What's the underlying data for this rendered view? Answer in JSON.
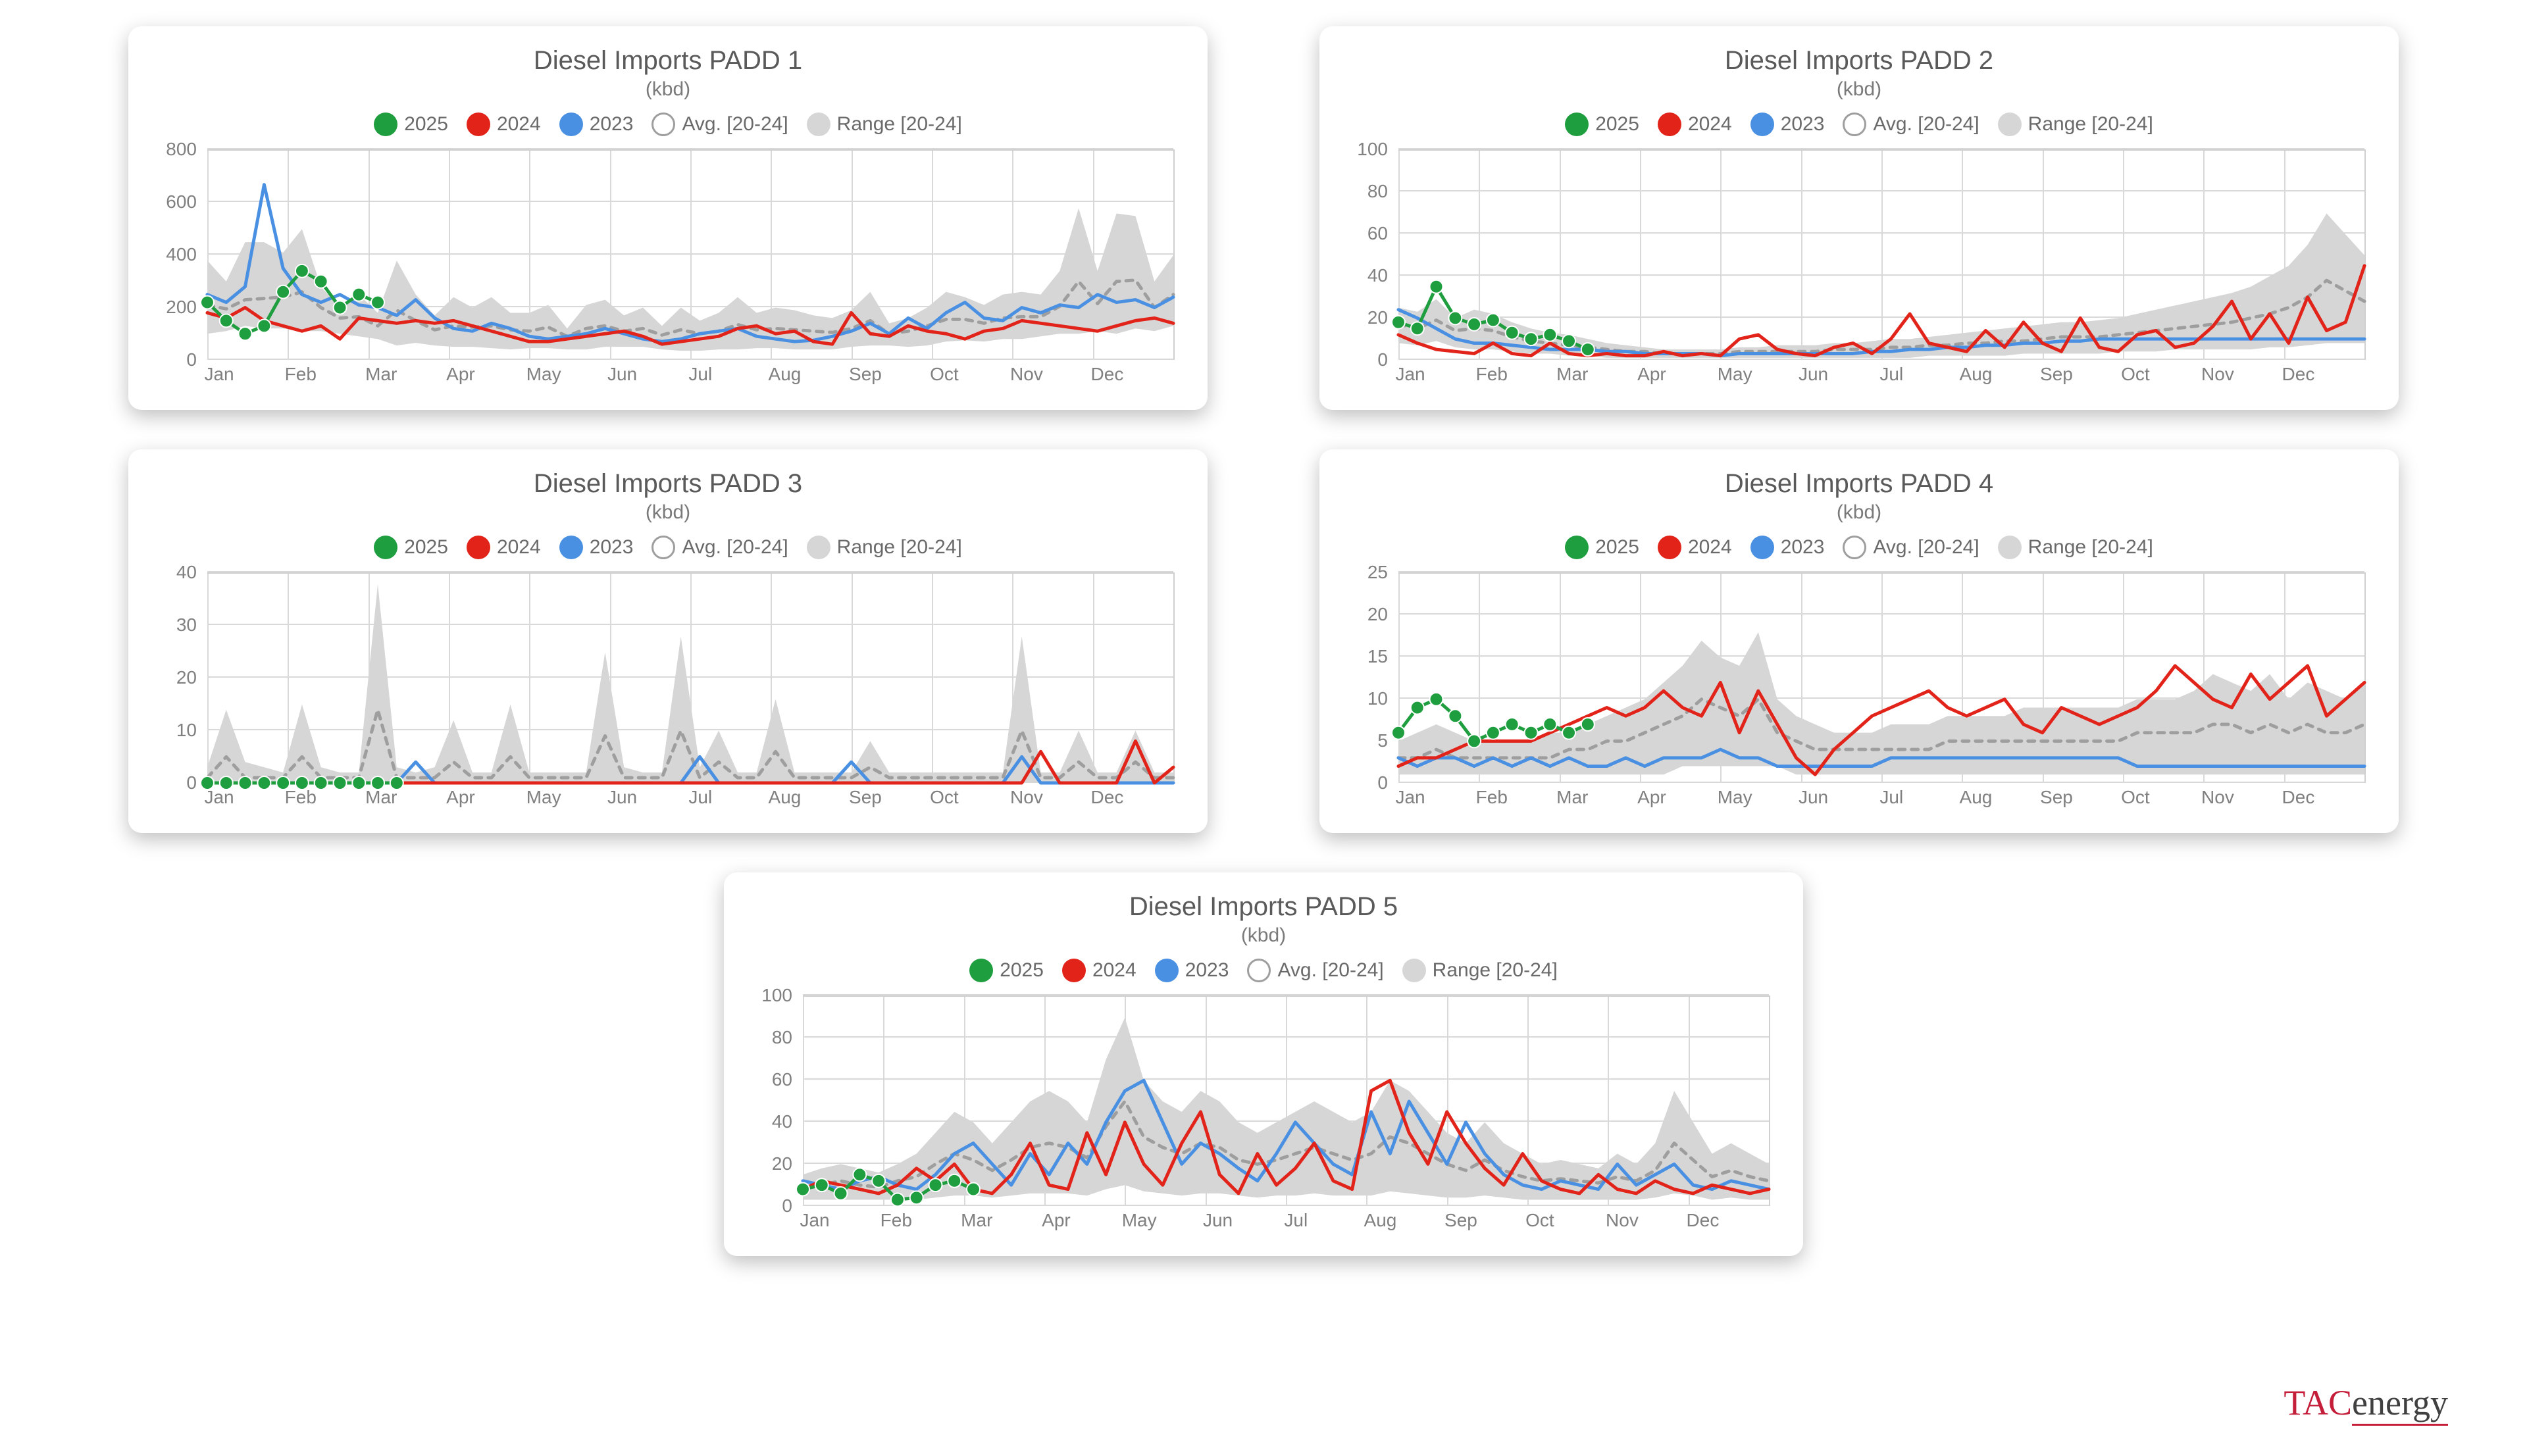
{
  "brand": {
    "part1": "TAC",
    "part2": "energy"
  },
  "legend": {
    "y2025": "2025",
    "y2024": "2024",
    "y2023": "2023",
    "avg": "Avg. [20-24]",
    "range": "Range [20-24]"
  },
  "colors": {
    "y2025": "#1e9e3e",
    "y2024": "#e2231a",
    "y2023": "#4a90e2",
    "avg": "#9e9e9e",
    "range": "#d6d6d6",
    "grid": "#d9d9d9",
    "text": "#6a6a6a",
    "card_bg": "#ffffff"
  },
  "style": {
    "line_width": 5,
    "marker_radius": 10,
    "avg_dash": "10,10",
    "title_fontsize": 40,
    "subtitle_fontsize": 30,
    "axis_fontsize": 28
  },
  "months": [
    "Jan",
    "Feb",
    "Mar",
    "Apr",
    "May",
    "Jun",
    "Jul",
    "Aug",
    "Sep",
    "Oct",
    "Nov",
    "Dec"
  ],
  "charts": [
    {
      "id": "padd1",
      "title": "Diesel Imports PADD 1",
      "subtitle": "(kbd)",
      "ylim": [
        0,
        800
      ],
      "yticks": [
        0,
        200,
        400,
        600,
        800
      ],
      "range_hi": [
        380,
        300,
        450,
        450,
        410,
        500,
        280,
        200,
        250,
        180,
        380,
        250,
        170,
        240,
        200,
        240,
        180,
        180,
        210,
        120,
        210,
        230,
        170,
        200,
        130,
        200,
        150,
        180,
        240,
        180,
        200,
        190,
        170,
        160,
        190,
        260,
        140,
        160,
        200,
        260,
        240,
        210,
        250,
        260,
        250,
        340,
        580,
        340,
        560,
        550,
        300,
        400
      ],
      "range_lo": [
        100,
        110,
        130,
        120,
        120,
        110,
        110,
        100,
        90,
        80,
        55,
        65,
        55,
        50,
        50,
        45,
        40,
        45,
        45,
        40,
        40,
        50,
        50,
        50,
        40,
        35,
        35,
        40,
        40,
        45,
        45,
        40,
        40,
        40,
        50,
        55,
        55,
        50,
        55,
        70,
        75,
        70,
        80,
        80,
        90,
        100,
        100,
        110,
        100,
        120,
        110,
        130
      ],
      "avg": [
        210,
        195,
        230,
        235,
        240,
        260,
        200,
        160,
        165,
        130,
        190,
        150,
        115,
        130,
        125,
        130,
        115,
        110,
        125,
        90,
        120,
        130,
        110,
        120,
        95,
        115,
        100,
        110,
        135,
        115,
        120,
        115,
        110,
        105,
        120,
        150,
        100,
        110,
        130,
        155,
        155,
        140,
        160,
        165,
        165,
        205,
        300,
        215,
        300,
        305,
        200,
        250
      ],
      "y2023": [
        250,
        220,
        280,
        670,
        350,
        250,
        220,
        250,
        210,
        200,
        170,
        230,
        160,
        120,
        110,
        140,
        120,
        90,
        80,
        90,
        100,
        120,
        100,
        80,
        70,
        80,
        100,
        110,
        120,
        90,
        80,
        70,
        75,
        90,
        110,
        140,
        100,
        160,
        120,
        180,
        220,
        160,
        150,
        200,
        180,
        210,
        200,
        250,
        220,
        230,
        200,
        240
      ],
      "y2024": [
        180,
        160,
        200,
        150,
        130,
        110,
        130,
        80,
        160,
        150,
        140,
        150,
        140,
        150,
        130,
        110,
        90,
        70,
        70,
        80,
        90,
        100,
        110,
        90,
        60,
        70,
        80,
        90,
        120,
        130,
        100,
        110,
        70,
        60,
        180,
        100,
        90,
        130,
        110,
        100,
        80,
        110,
        120,
        150,
        140,
        130,
        120,
        110,
        130,
        150,
        160,
        140
      ],
      "y2025": [
        220,
        150,
        100,
        130,
        260,
        340,
        300,
        200,
        250,
        220
      ]
    },
    {
      "id": "padd2",
      "title": "Diesel Imports PADD 2",
      "subtitle": "(kbd)",
      "ylim": [
        0,
        100
      ],
      "yticks": [
        0,
        20,
        40,
        60,
        80,
        100
      ],
      "range_hi": [
        25,
        23,
        29,
        20,
        24,
        22,
        18,
        15,
        13,
        12,
        10,
        8,
        7,
        6,
        5,
        5,
        5,
        5,
        6,
        6,
        7,
        7,
        7,
        8,
        8,
        9,
        10,
        10,
        11,
        12,
        13,
        14,
        15,
        16,
        17,
        18,
        18,
        19,
        20,
        22,
        24,
        26,
        28,
        30,
        32,
        35,
        40,
        45,
        55,
        70,
        60,
        50
      ],
      "range_lo": [
        8,
        7,
        9,
        6,
        5,
        5,
        4,
        3,
        3,
        2,
        2,
        1,
        1,
        1,
        1,
        1,
        1,
        1,
        1,
        1,
        1,
        1,
        1,
        1,
        1,
        1,
        1,
        1,
        2,
        2,
        2,
        2,
        2,
        3,
        3,
        3,
        3,
        3,
        4,
        4,
        4,
        5,
        5,
        5,
        5,
        5,
        6,
        6,
        7,
        8,
        8,
        8
      ],
      "avg": [
        17,
        15,
        19,
        14,
        15,
        14,
        11,
        9,
        8,
        7,
        6,
        5,
        4,
        4,
        3,
        3,
        3,
        3,
        4,
        4,
        4,
        4,
        4,
        5,
        5,
        5,
        6,
        6,
        7,
        7,
        8,
        8,
        9,
        9,
        10,
        11,
        11,
        11,
        12,
        13,
        14,
        15,
        16,
        17,
        18,
        20,
        22,
        25,
        30,
        38,
        33,
        28
      ],
      "y2023": [
        24,
        20,
        15,
        10,
        8,
        8,
        7,
        6,
        5,
        5,
        5,
        4,
        4,
        3,
        3,
        3,
        3,
        2,
        3,
        3,
        3,
        3,
        3,
        3,
        3,
        4,
        4,
        5,
        5,
        6,
        6,
        7,
        7,
        8,
        8,
        9,
        9,
        10,
        10,
        10,
        10,
        10,
        10,
        10,
        10,
        10,
        10,
        10,
        10,
        10,
        10,
        10
      ],
      "y2024": [
        12,
        8,
        5,
        4,
        3,
        8,
        3,
        2,
        8,
        3,
        2,
        3,
        2,
        2,
        4,
        2,
        3,
        2,
        10,
        12,
        5,
        3,
        2,
        6,
        8,
        3,
        10,
        22,
        8,
        6,
        4,
        14,
        6,
        18,
        8,
        4,
        20,
        6,
        4,
        12,
        14,
        6,
        8,
        16,
        28,
        10,
        22,
        8,
        30,
        14,
        18,
        45
      ],
      "y2025": [
        18,
        15,
        35,
        20,
        17,
        19,
        13,
        10,
        12,
        9,
        5
      ]
    },
    {
      "id": "padd3",
      "title": "Diesel Imports PADD 3",
      "subtitle": "(kbd)",
      "ylim": [
        0,
        40
      ],
      "yticks": [
        0,
        10,
        20,
        30,
        40
      ],
      "range_hi": [
        3,
        14,
        4,
        3,
        2,
        15,
        3,
        2,
        2,
        38,
        3,
        2,
        3,
        12,
        2,
        2,
        15,
        2,
        2,
        2,
        2,
        25,
        3,
        2,
        2,
        28,
        3,
        10,
        2,
        2,
        16,
        2,
        2,
        2,
        2,
        8,
        2,
        2,
        2,
        2,
        2,
        2,
        2,
        28,
        2,
        2,
        10,
        2,
        2,
        10,
        2,
        2
      ],
      "range_lo": [
        0,
        0,
        0,
        0,
        0,
        0,
        0,
        0,
        0,
        0,
        0,
        0,
        0,
        0,
        0,
        0,
        0,
        0,
        0,
        0,
        0,
        0,
        0,
        0,
        0,
        0,
        0,
        0,
        0,
        0,
        0,
        0,
        0,
        0,
        0,
        0,
        0,
        0,
        0,
        0,
        0,
        0,
        0,
        0,
        0,
        0,
        0,
        0,
        0,
        0,
        0,
        0
      ],
      "avg": [
        1,
        5,
        1,
        1,
        1,
        5,
        1,
        1,
        1,
        14,
        1,
        1,
        1,
        4,
        1,
        1,
        5,
        1,
        1,
        1,
        1,
        9,
        1,
        1,
        1,
        10,
        1,
        4,
        1,
        1,
        6,
        1,
        1,
        1,
        1,
        3,
        1,
        1,
        1,
        1,
        1,
        1,
        1,
        10,
        1,
        1,
        4,
        1,
        1,
        4,
        1,
        1
      ],
      "y2023": [
        0,
        0,
        0,
        0,
        0,
        0,
        0,
        0,
        0,
        0,
        0,
        4,
        0,
        0,
        0,
        0,
        0,
        0,
        0,
        0,
        0,
        0,
        0,
        0,
        0,
        0,
        5,
        0,
        0,
        0,
        0,
        0,
        0,
        0,
        4,
        0,
        0,
        0,
        0,
        0,
        0,
        0,
        0,
        5,
        0,
        0,
        0,
        0,
        0,
        0,
        0,
        0
      ],
      "y2024": [
        0,
        0,
        0,
        0,
        0,
        0,
        0,
        0,
        0,
        0,
        0,
        0,
        0,
        0,
        0,
        0,
        0,
        0,
        0,
        0,
        0,
        0,
        0,
        0,
        0,
        0,
        0,
        0,
        0,
        0,
        0,
        0,
        0,
        0,
        0,
        0,
        0,
        0,
        0,
        0,
        0,
        0,
        0,
        0,
        6,
        0,
        0,
        0,
        0,
        8,
        0,
        3
      ],
      "y2025": [
        0,
        0,
        0,
        0,
        0,
        0,
        0,
        0,
        0,
        0,
        0
      ]
    },
    {
      "id": "padd4",
      "title": "Diesel Imports PADD 4",
      "subtitle": "(kbd)",
      "ylim": [
        0,
        25
      ],
      "yticks": [
        0,
        5,
        10,
        15,
        20,
        25
      ],
      "range_hi": [
        5,
        6,
        7,
        6,
        5,
        5,
        5,
        5,
        6,
        6,
        7,
        8,
        9,
        10,
        12,
        14,
        17,
        15,
        14,
        18,
        10,
        8,
        7,
        6,
        6,
        6,
        7,
        7,
        7,
        8,
        8,
        8,
        8,
        9,
        9,
        9,
        9,
        9,
        9,
        10,
        10,
        10,
        11,
        13,
        12,
        11,
        13,
        10,
        12,
        11,
        10,
        12
      ],
      "range_lo": [
        1,
        1,
        1,
        1,
        1,
        1,
        1,
        1,
        1,
        1,
        1,
        1,
        1,
        1,
        1,
        2,
        2,
        2,
        2,
        2,
        2,
        1,
        1,
        1,
        1,
        1,
        1,
        1,
        1,
        1,
        1,
        1,
        1,
        1,
        1,
        1,
        1,
        1,
        1,
        1,
        1,
        1,
        1,
        1,
        1,
        1,
        1,
        1,
        1,
        1,
        1,
        1
      ],
      "avg": [
        3,
        3,
        4,
        3,
        3,
        3,
        3,
        3,
        3,
        4,
        4,
        5,
        5,
        6,
        7,
        8,
        10,
        9,
        8,
        10,
        6,
        5,
        4,
        4,
        4,
        4,
        4,
        4,
        4,
        5,
        5,
        5,
        5,
        5,
        5,
        5,
        5,
        5,
        5,
        6,
        6,
        6,
        6,
        7,
        7,
        6,
        7,
        6,
        7,
        6,
        6,
        7
      ],
      "y2023": [
        3,
        2,
        3,
        3,
        2,
        3,
        2,
        3,
        2,
        3,
        2,
        2,
        3,
        2,
        3,
        3,
        3,
        4,
        3,
        3,
        2,
        2,
        2,
        2,
        2,
        2,
        3,
        3,
        3,
        3,
        3,
        3,
        3,
        3,
        3,
        3,
        3,
        3,
        3,
        2,
        2,
        2,
        2,
        2,
        2,
        2,
        2,
        2,
        2,
        2,
        2,
        2
      ],
      "y2024": [
        2,
        3,
        3,
        4,
        5,
        5,
        5,
        5,
        6,
        7,
        8,
        9,
        8,
        9,
        11,
        9,
        8,
        12,
        6,
        11,
        7,
        3,
        1,
        4,
        6,
        8,
        9,
        10,
        11,
        9,
        8,
        9,
        10,
        7,
        6,
        9,
        8,
        7,
        8,
        9,
        11,
        14,
        12,
        10,
        9,
        13,
        10,
        12,
        14,
        8,
        10,
        12
      ],
      "y2025": [
        6,
        9,
        10,
        8,
        5,
        6,
        7,
        6,
        7,
        6,
        7
      ]
    },
    {
      "id": "padd5",
      "title": "Diesel Imports PADD 5",
      "subtitle": "(kbd)",
      "ylim": [
        0,
        100
      ],
      "yticks": [
        0,
        20,
        40,
        60,
        80,
        100
      ],
      "range_hi": [
        15,
        18,
        20,
        18,
        16,
        20,
        25,
        35,
        45,
        40,
        30,
        40,
        50,
        55,
        50,
        40,
        70,
        90,
        60,
        50,
        45,
        55,
        50,
        40,
        35,
        40,
        45,
        50,
        45,
        40,
        45,
        60,
        55,
        45,
        35,
        30,
        40,
        30,
        25,
        20,
        22,
        20,
        18,
        25,
        20,
        30,
        55,
        40,
        25,
        30,
        25,
        20
      ],
      "range_lo": [
        3,
        3,
        3,
        3,
        3,
        3,
        3,
        4,
        5,
        5,
        4,
        5,
        6,
        6,
        6,
        5,
        8,
        10,
        7,
        6,
        5,
        6,
        6,
        5,
        4,
        5,
        5,
        6,
        5,
        5,
        5,
        7,
        6,
        5,
        4,
        4,
        5,
        4,
        3,
        3,
        3,
        3,
        3,
        3,
        3,
        4,
        6,
        5,
        3,
        4,
        3,
        3
      ],
      "avg": [
        9,
        10,
        12,
        10,
        9,
        12,
        14,
        20,
        25,
        22,
        17,
        22,
        28,
        30,
        28,
        23,
        38,
        50,
        33,
        28,
        25,
        30,
        28,
        22,
        20,
        22,
        25,
        28,
        25,
        22,
        25,
        33,
        30,
        25,
        20,
        17,
        22,
        17,
        14,
        12,
        13,
        12,
        11,
        14,
        12,
        17,
        30,
        22,
        14,
        17,
        14,
        12
      ],
      "y2023": [
        12,
        10,
        8,
        12,
        14,
        10,
        8,
        15,
        25,
        30,
        20,
        10,
        25,
        15,
        30,
        20,
        40,
        55,
        60,
        40,
        20,
        30,
        25,
        18,
        12,
        25,
        40,
        30,
        20,
        15,
        45,
        25,
        50,
        35,
        20,
        40,
        25,
        15,
        10,
        8,
        12,
        10,
        8,
        20,
        10,
        15,
        20,
        10,
        8,
        12,
        10,
        8
      ],
      "y2024": [
        8,
        12,
        10,
        8,
        6,
        10,
        18,
        12,
        20,
        8,
        6,
        15,
        30,
        10,
        8,
        35,
        15,
        40,
        20,
        10,
        30,
        45,
        15,
        6,
        25,
        10,
        18,
        30,
        12,
        8,
        55,
        60,
        35,
        20,
        45,
        30,
        18,
        10,
        25,
        12,
        8,
        6,
        15,
        8,
        6,
        12,
        8,
        6,
        10,
        8,
        6,
        8
      ],
      "y2025": [
        8,
        10,
        6,
        15,
        12,
        3,
        4,
        10,
        12,
        8
      ],
      "center": true
    }
  ]
}
